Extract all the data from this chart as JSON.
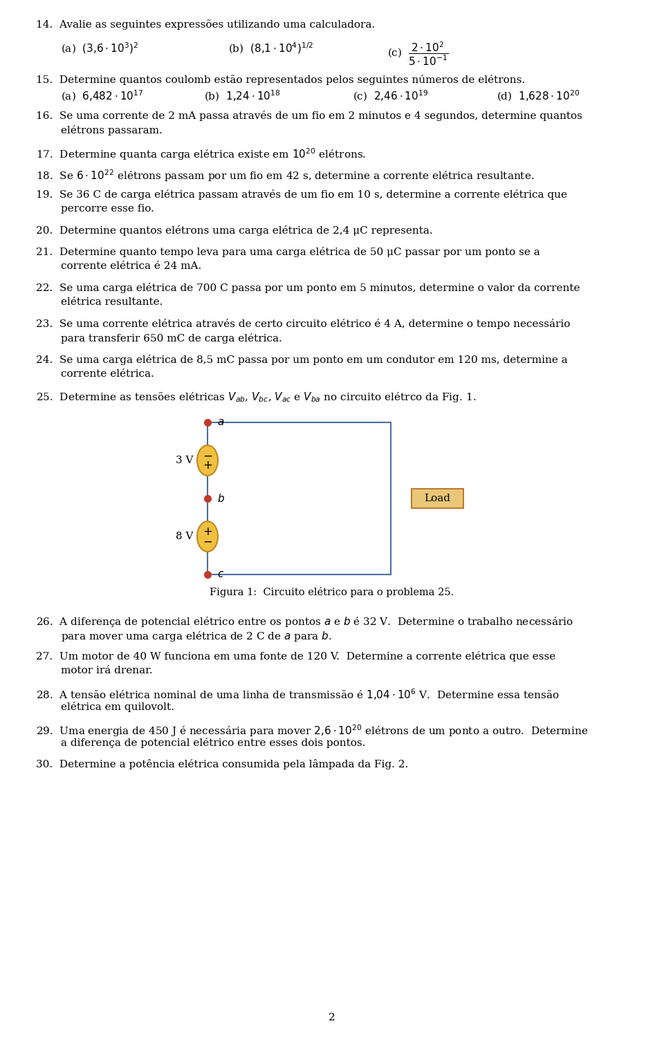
{
  "bg_color": "#ffffff",
  "text_color": "#000000",
  "fs": 11.0,
  "page_number": "2",
  "wire_color": "#4A6FA5",
  "dot_color": "#C0392B",
  "bat_face": "#F0C040",
  "bat_edge": "#C08820",
  "load_face": "#E8C878",
  "load_edge": "#C07830",
  "ml": 52,
  "ind": 88
}
